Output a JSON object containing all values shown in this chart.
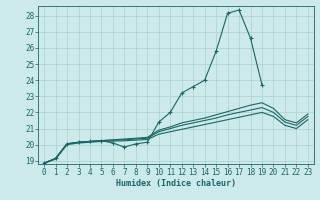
{
  "title": "",
  "xlabel": "Humidex (Indice chaleur)",
  "bg_color": "#cceaea",
  "grid_color": "#b0d4d4",
  "line_color": "#1a6666",
  "xlim": [
    -0.5,
    23.5
  ],
  "ylim": [
    18.8,
    28.6
  ],
  "xticks": [
    0,
    1,
    2,
    3,
    4,
    5,
    6,
    7,
    8,
    9,
    10,
    11,
    12,
    13,
    14,
    15,
    16,
    17,
    18,
    19,
    20,
    21,
    22,
    23
  ],
  "yticks": [
    19,
    20,
    21,
    22,
    23,
    24,
    25,
    26,
    27,
    28
  ],
  "lines": [
    {
      "x": [
        0,
        1,
        2,
        3,
        4,
        5,
        6,
        7,
        8,
        9,
        10,
        11,
        12,
        13,
        14,
        15,
        16,
        17,
        18,
        19
      ],
      "y": [
        18.85,
        19.15,
        20.05,
        20.15,
        20.2,
        20.25,
        20.1,
        19.85,
        20.05,
        20.15,
        21.4,
        22.0,
        23.2,
        23.6,
        24.0,
        25.8,
        28.15,
        28.35,
        26.6,
        23.7
      ],
      "marker": "+"
    },
    {
      "x": [
        0,
        1,
        2,
        3,
        4,
        5,
        6,
        7,
        8,
        9,
        10,
        11,
        12,
        13,
        14,
        15,
        16,
        17,
        18,
        19,
        20,
        21,
        22,
        23
      ],
      "y": [
        18.85,
        19.15,
        20.05,
        20.15,
        20.2,
        20.25,
        20.3,
        20.35,
        20.4,
        20.45,
        20.9,
        21.1,
        21.35,
        21.5,
        21.65,
        21.85,
        22.05,
        22.25,
        22.45,
        22.6,
        22.25,
        21.55,
        21.35,
        21.9
      ],
      "marker": null
    },
    {
      "x": [
        0,
        1,
        2,
        3,
        4,
        5,
        6,
        7,
        8,
        9,
        10,
        11,
        12,
        13,
        14,
        15,
        16,
        17,
        18,
        19,
        20,
        21,
        22,
        23
      ],
      "y": [
        18.85,
        19.15,
        20.05,
        20.15,
        20.2,
        20.25,
        20.28,
        20.3,
        20.35,
        20.4,
        20.8,
        21.0,
        21.2,
        21.35,
        21.5,
        21.65,
        21.85,
        22.0,
        22.15,
        22.3,
        22.0,
        21.4,
        21.2,
        21.75
      ],
      "marker": null
    },
    {
      "x": [
        0,
        1,
        2,
        3,
        4,
        5,
        6,
        7,
        8,
        9,
        10,
        11,
        12,
        13,
        14,
        15,
        16,
        17,
        18,
        19,
        20,
        21,
        22,
        23
      ],
      "y": [
        18.85,
        19.1,
        20.0,
        20.1,
        20.15,
        20.2,
        20.22,
        20.24,
        20.28,
        20.32,
        20.65,
        20.8,
        20.95,
        21.1,
        21.25,
        21.4,
        21.55,
        21.7,
        21.85,
        22.0,
        21.75,
        21.2,
        21.0,
        21.55
      ],
      "marker": null
    }
  ],
  "xlabel_fontsize": 6,
  "tick_fontsize": 5.5
}
